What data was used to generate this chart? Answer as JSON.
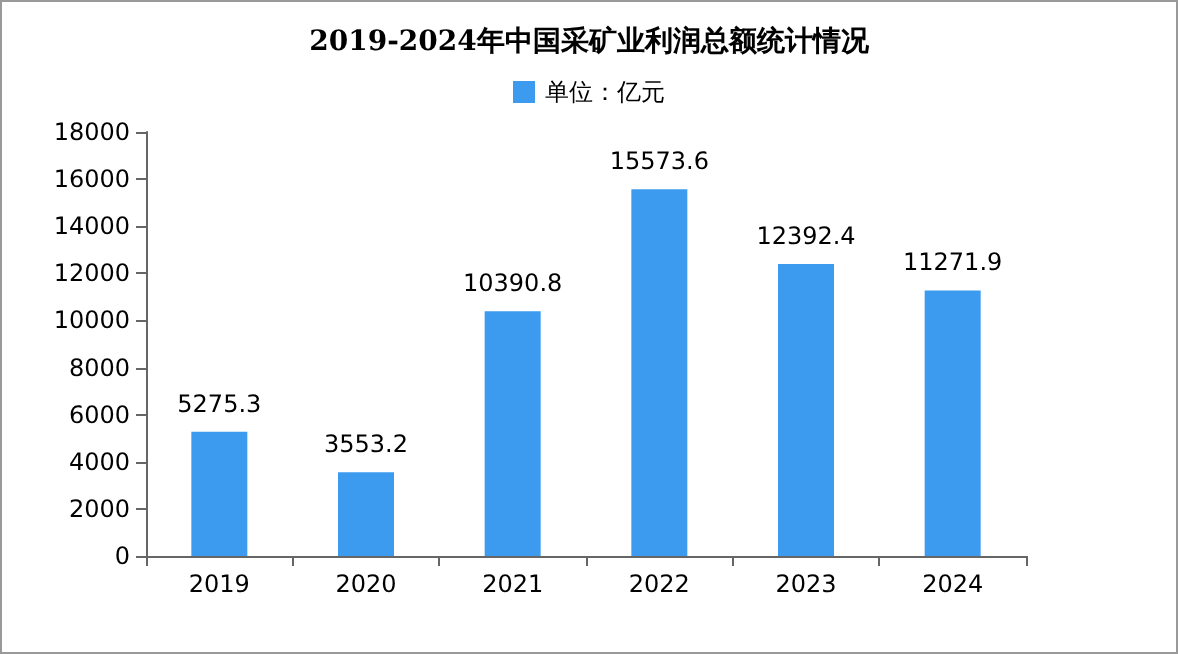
{
  "chart_data": {
    "type": "bar",
    "title": "2019-2024年中国采矿业利润总额统计情况",
    "categories": [
      "2019",
      "2020",
      "2021",
      "2022",
      "2023",
      "2024"
    ],
    "series": [
      {
        "name": "单位：亿元",
        "color": "#3c9bef",
        "values": [
          5275.3,
          3553.2,
          10390.8,
          15573.6,
          12392.4,
          11271.9
        ]
      }
    ],
    "ylim": [
      0,
      18000
    ],
    "yticks": [
      0,
      2000,
      4000,
      6000,
      8000,
      10000,
      12000,
      14000,
      16000,
      18000
    ],
    "grid": false,
    "legend": "top",
    "data_labels": true
  }
}
